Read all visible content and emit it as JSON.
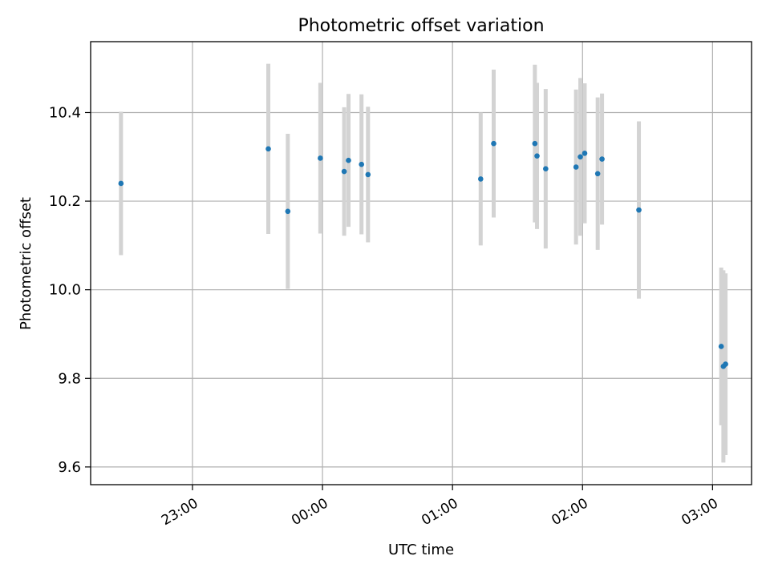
{
  "chart_data": {
    "type": "scatter",
    "title": "Photometric offset variation",
    "xlabel": "UTC time",
    "ylabel": "Photometric offset",
    "xlim": [
      "22:13",
      "03:18"
    ],
    "ylim": [
      9.56,
      10.56
    ],
    "x_ticks": [
      "23:00",
      "00:00",
      "01:00",
      "02:00",
      "03:00"
    ],
    "y_ticks": [
      9.6,
      9.8,
      10.0,
      10.2,
      10.4
    ],
    "grid": true,
    "colors": {
      "marker": "#1f77b4",
      "errorbar": "#d3d3d3",
      "grid": "#b0b0b0"
    },
    "points": [
      {
        "x": "22:27",
        "y": 10.24,
        "err": 0.162
      },
      {
        "x": "23:35",
        "y": 10.318,
        "err": 0.192
      },
      {
        "x": "23:44",
        "y": 10.177,
        "err": 0.175
      },
      {
        "x": "23:59",
        "y": 10.297,
        "err": 0.17
      },
      {
        "x": "00:10",
        "y": 10.267,
        "err": 0.145
      },
      {
        "x": "00:12",
        "y": 10.292,
        "err": 0.15
      },
      {
        "x": "00:18",
        "y": 10.283,
        "err": 0.158
      },
      {
        "x": "00:21",
        "y": 10.26,
        "err": 0.153
      },
      {
        "x": "01:13",
        "y": 10.25,
        "err": 0.15
      },
      {
        "x": "01:19",
        "y": 10.33,
        "err": 0.167
      },
      {
        "x": "01:38",
        "y": 10.33,
        "err": 0.178
      },
      {
        "x": "01:39",
        "y": 10.302,
        "err": 0.165
      },
      {
        "x": "01:43",
        "y": 10.273,
        "err": 0.18
      },
      {
        "x": "01:57",
        "y": 10.277,
        "err": 0.175
      },
      {
        "x": "01:59",
        "y": 10.3,
        "err": 0.178
      },
      {
        "x": "02:01",
        "y": 10.308,
        "err": 0.158
      },
      {
        "x": "02:07",
        "y": 10.262,
        "err": 0.172
      },
      {
        "x": "02:09",
        "y": 10.295,
        "err": 0.148
      },
      {
        "x": "02:26",
        "y": 10.18,
        "err": 0.2
      },
      {
        "x": "03:04",
        "y": 9.872,
        "err": 0.178
      },
      {
        "x": "03:05",
        "y": 9.827,
        "err": 0.217
      },
      {
        "x": "03:06",
        "y": 9.832,
        "err": 0.205
      }
    ]
  }
}
